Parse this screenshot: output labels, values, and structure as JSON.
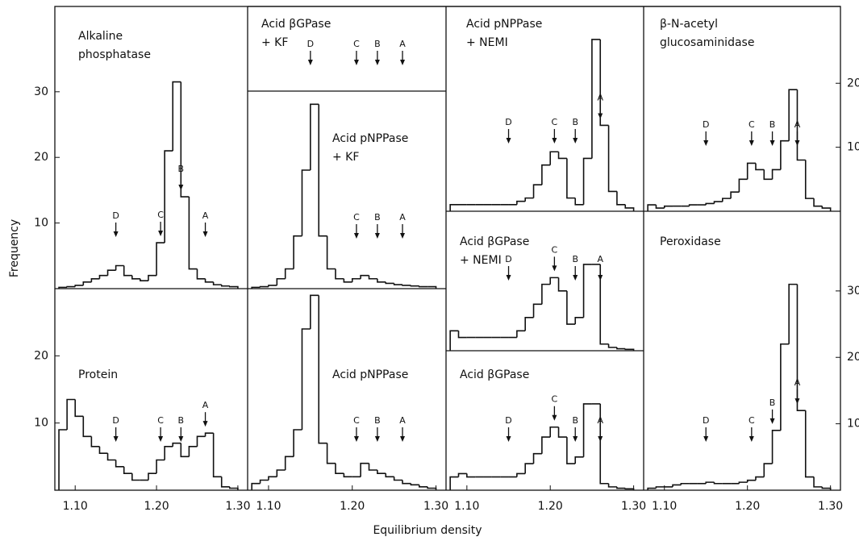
{
  "chart_data": {
    "type": "histogram",
    "xlabel": "Equilibrium density",
    "ylabel": "Frequency",
    "xlim": [
      1.075,
      1.312
    ],
    "xticks": [
      {
        "value": 1.1,
        "label": "1.10"
      },
      {
        "value": 1.2,
        "label": "1.20"
      },
      {
        "value": 1.3,
        "label": "1.30"
      }
    ],
    "bins": [
      1.08,
      1.09,
      1.1,
      1.11,
      1.12,
      1.13,
      1.14,
      1.15,
      1.16,
      1.17,
      1.18,
      1.19,
      1.2,
      1.21,
      1.22,
      1.23,
      1.24,
      1.25,
      1.26,
      1.27,
      1.28,
      1.29,
      1.3
    ],
    "color": "#111111",
    "panels": [
      {
        "title": [
          "Alkaline",
          "phosphatase"
        ],
        "ylim": [
          0,
          43
        ],
        "yticks": [
          10,
          20,
          30
        ],
        "yaxis": "left",
        "values": [
          0.2,
          0.3,
          0.5,
          1,
          1.5,
          2,
          2.8,
          3.5,
          2,
          1.5,
          1.2,
          2,
          7,
          21,
          31.5,
          14,
          3,
          1.5,
          1,
          0.6,
          0.4,
          0.3
        ],
        "markers": [
          {
            "label": "D",
            "x": 1.15
          },
          {
            "label": "C",
            "x": 1.205
          },
          {
            "label": "B",
            "x": 1.23
          },
          {
            "label": "A",
            "x": 1.26
          }
        ]
      },
      {
        "title": [
          "Protein"
        ],
        "ylim": [
          0,
          30
        ],
        "yticks": [
          10,
          20
        ],
        "yaxis": "left",
        "values": [
          9,
          13.5,
          11,
          8,
          6.5,
          5.5,
          4.5,
          3.5,
          2.5,
          1.5,
          1.5,
          2.5,
          4.5,
          6.5,
          7,
          5,
          6.5,
          8,
          8.5,
          2,
          0.5,
          0.3
        ],
        "markers": [
          {
            "label": "D",
            "x": 1.15
          },
          {
            "label": "C",
            "x": 1.205
          },
          {
            "label": "B",
            "x": 1.23
          },
          {
            "label": "A",
            "x": 1.26
          }
        ]
      },
      {
        "title": [
          "Acid βGPase",
          "+ KF"
        ],
        "markers": [
          {
            "label": "D",
            "x": 1.15
          },
          {
            "label": "C",
            "x": 1.205
          },
          {
            "label": "B",
            "x": 1.23
          },
          {
            "label": "A",
            "x": 1.26
          }
        ]
      },
      {
        "title": [
          "Acid pNPPase",
          "+ KF"
        ],
        "ylim": [
          0,
          30
        ],
        "values": [
          0.2,
          0.3,
          0.5,
          1.5,
          3,
          8,
          18,
          28,
          8,
          3,
          1.5,
          1,
          1.5,
          2,
          1.5,
          1,
          0.8,
          0.6,
          0.5,
          0.4,
          0.3,
          0.3
        ],
        "markers": [
          {
            "label": "C",
            "x": 1.205
          },
          {
            "label": "B",
            "x": 1.23
          },
          {
            "label": "A",
            "x": 1.26
          }
        ]
      },
      {
        "title": [
          "Acid pNPPase"
        ],
        "ylim": [
          0,
          30
        ],
        "values": [
          1,
          1.5,
          2,
          3,
          5,
          9,
          24,
          29,
          7,
          4,
          2.5,
          2,
          2,
          4,
          3,
          2.5,
          2,
          1.5,
          1,
          0.8,
          0.5,
          0.3
        ],
        "markers": [
          {
            "label": "C",
            "x": 1.205
          },
          {
            "label": "B",
            "x": 1.23
          },
          {
            "label": "A",
            "x": 1.26
          }
        ]
      },
      {
        "title": [
          "Acid pNPPase",
          "+ NEMI"
        ],
        "ylim": [
          0,
          31
        ],
        "values": [
          1,
          1,
          1,
          1,
          1,
          1,
          1,
          1,
          1.5,
          2,
          4,
          7,
          9,
          8,
          2,
          1,
          8,
          26,
          13,
          3,
          1,
          0.5
        ],
        "markers": [
          {
            "label": "D",
            "x": 1.15
          },
          {
            "label": "C",
            "x": 1.205
          },
          {
            "label": "B",
            "x": 1.23
          },
          {
            "label": "A",
            "x": 1.26
          }
        ]
      },
      {
        "title": [
          "Acid βGPase",
          "+ NEMI"
        ],
        "ylim": [
          0,
          21
        ],
        "values": [
          3,
          2,
          2,
          2,
          2,
          2,
          2,
          2,
          3,
          5,
          7,
          10,
          11,
          9,
          4,
          5,
          13,
          13,
          1,
          0.5,
          0.3,
          0.2
        ],
        "markers": [
          {
            "label": "D",
            "x": 1.15
          },
          {
            "label": "C",
            "x": 1.205
          },
          {
            "label": "B",
            "x": 1.23
          },
          {
            "label": "A",
            "x": 1.26
          }
        ]
      },
      {
        "title": [
          "Acid βGPase"
        ],
        "ylim": [
          0,
          21
        ],
        "values": [
          2,
          2.5,
          2,
          2,
          2,
          2,
          2,
          2,
          2.5,
          4,
          5.5,
          8,
          9.5,
          8,
          4,
          5,
          13,
          13,
          1,
          0.5,
          0.3,
          0.2
        ],
        "markers": [
          {
            "label": "D",
            "x": 1.15
          },
          {
            "label": "C",
            "x": 1.205
          },
          {
            "label": "B",
            "x": 1.23
          },
          {
            "label": "A",
            "x": 1.26
          }
        ]
      },
      {
        "title": [
          "β-N-acetyl",
          "glucosaminidase"
        ],
        "ylim": [
          0,
          32
        ],
        "yticks": [
          10,
          20
        ],
        "yaxis": "right",
        "values": [
          1,
          0.5,
          0.8,
          0.8,
          0.8,
          1,
          1,
          1.2,
          1.5,
          2,
          3,
          5,
          7.5,
          6.5,
          5,
          6.5,
          11,
          19,
          8,
          2,
          0.8,
          0.5
        ],
        "markers": [
          {
            "label": "D",
            "x": 1.15
          },
          {
            "label": "C",
            "x": 1.205
          },
          {
            "label": "B",
            "x": 1.23
          },
          {
            "label": "A",
            "x": 1.26
          }
        ]
      },
      {
        "title": [
          "Peroxidase"
        ],
        "ylim": [
          0,
          42
        ],
        "yticks": [
          10,
          20,
          30
        ],
        "yaxis": "right",
        "values": [
          0.3,
          0.5,
          0.5,
          0.8,
          1,
          1,
          1,
          1.2,
          1,
          1,
          1,
          1.2,
          1.5,
          2,
          4,
          9,
          22,
          31,
          12,
          2,
          0.5,
          0.3
        ],
        "markers": [
          {
            "label": "D",
            "x": 1.15
          },
          {
            "label": "C",
            "x": 1.205
          },
          {
            "label": "B",
            "x": 1.23
          },
          {
            "label": "A",
            "x": 1.26
          }
        ]
      }
    ]
  }
}
